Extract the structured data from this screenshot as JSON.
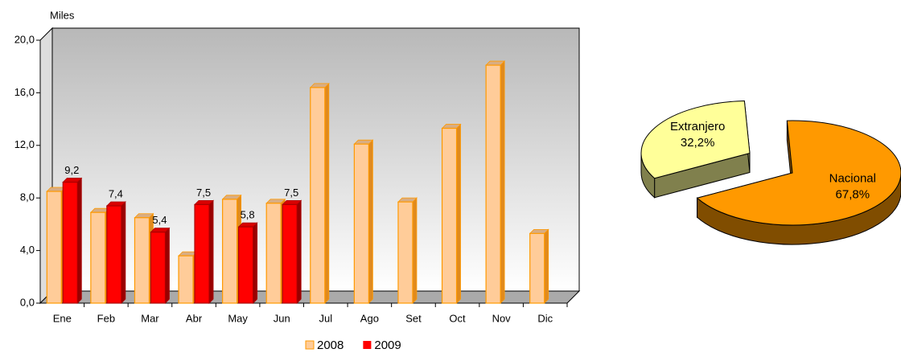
{
  "chart_data": [
    {
      "type": "bar3d",
      "y_label": "Miles",
      "categories": [
        "Ene",
        "Feb",
        "Mar",
        "Abr",
        "May",
        "Jun",
        "Jul",
        "Ago",
        "Set",
        "Oct",
        "Nov",
        "Dic"
      ],
      "series": [
        {
          "name": "2008",
          "color": "#FFCC99",
          "values": [
            8.5,
            6.9,
            6.5,
            3.6,
            7.9,
            7.6,
            16.4,
            12.1,
            7.7,
            13.3,
            18.1,
            5.3
          ]
        },
        {
          "name": "2009",
          "color": "#FF0000",
          "values": [
            9.2,
            7.4,
            5.4,
            7.5,
            5.8,
            7.5,
            null,
            null,
            null,
            null,
            null,
            null
          ],
          "value_labels": [
            "9,2",
            "7,4",
            "5,4",
            "7,5",
            "5,8",
            "7,5",
            null,
            null,
            null,
            null,
            null,
            null
          ]
        }
      ],
      "ylim": [
        0,
        20
      ],
      "yticks": [
        {
          "value": 0,
          "label": "0,0"
        },
        {
          "value": 4,
          "label": "4,0"
        },
        {
          "value": 8,
          "label": "8,0"
        },
        {
          "value": 12,
          "label": "12,0"
        },
        {
          "value": 16,
          "label": "16,0"
        },
        {
          "value": 20,
          "label": "20,0"
        }
      ],
      "grid": false,
      "legend": "bottom"
    },
    {
      "type": "pie3d",
      "categories": [
        "Nacional",
        "Extranjero"
      ],
      "values": [
        67.8,
        32.2
      ],
      "value_labels": [
        "67,8%",
        "32,2%"
      ],
      "colors": [
        "#FF9900",
        "#FFFF99"
      ]
    }
  ]
}
